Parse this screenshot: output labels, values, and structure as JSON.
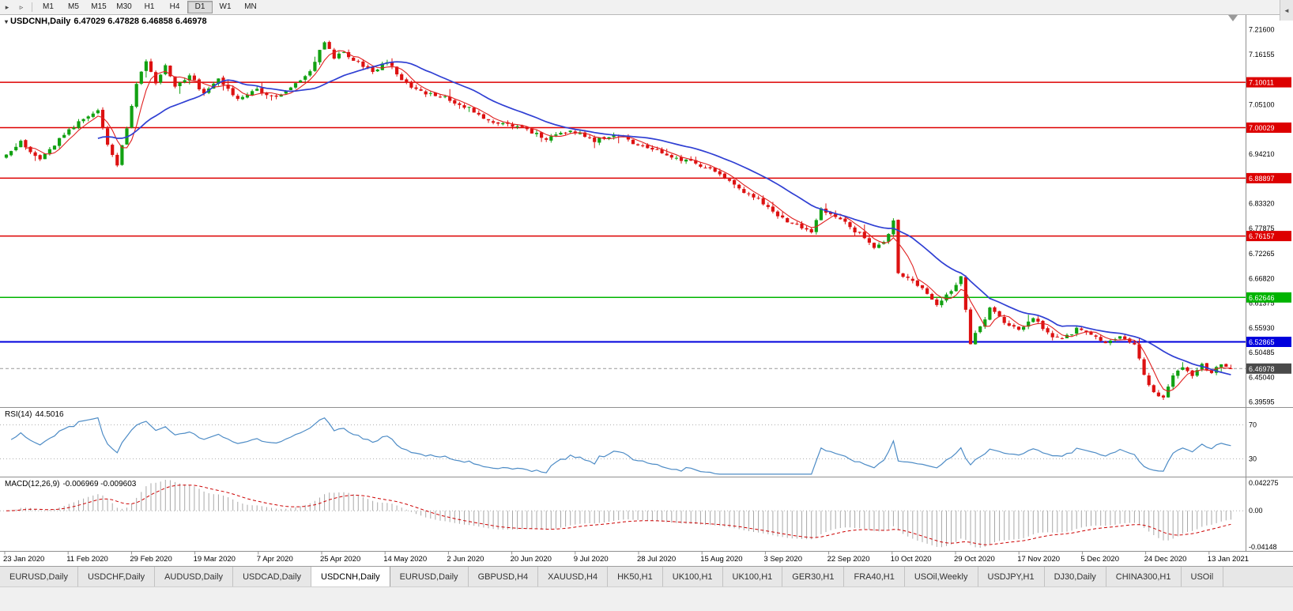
{
  "toolbar": {
    "timeframes": [
      "M1",
      "M5",
      "M15",
      "M30",
      "H1",
      "H4",
      "D1",
      "W1",
      "MN"
    ],
    "active": "D1"
  },
  "chart_data": {
    "type": "candlestick",
    "symbol": "USDCNH",
    "timeframe": "Daily",
    "title": "USDCNH,Daily",
    "ohlc_text": "6.47029 6.47828 6.46858 6.46978",
    "last_candle": {
      "open": 6.47029,
      "high": 6.47828,
      "low": 6.46858,
      "close": 6.46978
    },
    "current_price": "6.46978",
    "y_axis_range": [
      6.385,
      7.25
    ],
    "y_axis_ticks": [
      "7.21600",
      "7.16155",
      "7.05100",
      "6.94210",
      "6.83320",
      "6.77875",
      "6.72265",
      "6.66820",
      "6.61375",
      "6.55930",
      "6.50485",
      "6.45040",
      "6.39595"
    ],
    "levels": [
      {
        "value": "7.10011",
        "color": "#dd0000"
      },
      {
        "value": "7.00029",
        "color": "#dd0000"
      },
      {
        "value": "6.88897",
        "color": "#dd0000"
      },
      {
        "value": "6.76157",
        "color": "#dd0000"
      },
      {
        "value": "6.62646",
        "color": "#00b400"
      },
      {
        "value": "6.52865",
        "color": "#0000dd"
      }
    ],
    "x_labels": [
      "23 Jan 2020",
      "11 Feb 2020",
      "29 Feb 2020",
      "19 Mar 2020",
      "7 Apr 2020",
      "25 Apr 2020",
      "14 May 2020",
      "2 Jun 2020",
      "20 Jun 2020",
      "9 Jul 2020",
      "28 Jul 2020",
      "15 Aug 2020",
      "3 Sep 2020",
      "22 Sep 2020",
      "10 Oct 2020",
      "29 Oct 2020",
      "17 Nov 2020",
      "5 Dec 2020",
      "24 Dec 2020",
      "13 Jan 2021"
    ],
    "candles_n": 255,
    "close_anchors": [
      [
        0,
        6.94
      ],
      [
        3,
        6.968
      ],
      [
        7,
        6.93
      ],
      [
        12,
        6.985
      ],
      [
        16,
        7.02
      ],
      [
        19,
        7.038
      ],
      [
        21,
        6.962
      ],
      [
        23,
        6.92
      ],
      [
        25,
        7.0
      ],
      [
        27,
        7.095
      ],
      [
        29,
        7.15
      ],
      [
        31,
        7.1
      ],
      [
        33,
        7.138
      ],
      [
        35,
        7.09
      ],
      [
        38,
        7.118
      ],
      [
        41,
        7.072
      ],
      [
        44,
        7.108
      ],
      [
        48,
        7.062
      ],
      [
        52,
        7.082
      ],
      [
        56,
        7.068
      ],
      [
        60,
        7.096
      ],
      [
        63,
        7.124
      ],
      [
        66,
        7.192
      ],
      [
        68,
        7.152
      ],
      [
        70,
        7.168
      ],
      [
        73,
        7.142
      ],
      [
        76,
        7.122
      ],
      [
        79,
        7.148
      ],
      [
        82,
        7.102
      ],
      [
        86,
        7.078
      ],
      [
        91,
        7.066
      ],
      [
        96,
        7.042
      ],
      [
        100,
        7.016
      ],
      [
        104,
        7.006
      ],
      [
        108,
        6.996
      ],
      [
        112,
        6.976
      ],
      [
        117,
        6.992
      ],
      [
        122,
        6.972
      ],
      [
        126,
        6.986
      ],
      [
        130,
        6.966
      ],
      [
        134,
        6.952
      ],
      [
        138,
        6.936
      ],
      [
        143,
        6.922
      ],
      [
        147,
        6.902
      ],
      [
        150,
        6.882
      ],
      [
        153,
        6.858
      ],
      [
        156,
        6.842
      ],
      [
        159,
        6.812
      ],
      [
        162,
        6.792
      ],
      [
        165,
        6.782
      ],
      [
        167,
        6.766
      ],
      [
        169,
        6.822
      ],
      [
        172,
        6.806
      ],
      [
        175,
        6.782
      ],
      [
        178,
        6.757
      ],
      [
        180,
        6.732
      ],
      [
        182,
        6.748
      ],
      [
        184,
        6.792
      ],
      [
        185,
        6.682
      ],
      [
        187,
        6.666
      ],
      [
        190,
        6.646
      ],
      [
        193,
        6.612
      ],
      [
        196,
        6.642
      ],
      [
        198,
        6.672
      ],
      [
        200,
        6.527
      ],
      [
        202,
        6.562
      ],
      [
        204,
        6.602
      ],
      [
        207,
        6.572
      ],
      [
        210,
        6.557
      ],
      [
        213,
        6.582
      ],
      [
        216,
        6.547
      ],
      [
        219,
        6.532
      ],
      [
        222,
        6.557
      ],
      [
        225,
        6.542
      ],
      [
        228,
        6.527
      ],
      [
        231,
        6.537
      ],
      [
        234,
        6.522
      ],
      [
        236,
        6.457
      ],
      [
        238,
        6.417
      ],
      [
        240,
        6.407
      ],
      [
        242,
        6.452
      ],
      [
        244,
        6.472
      ],
      [
        246,
        6.457
      ],
      [
        248,
        6.477
      ],
      [
        250,
        6.462
      ],
      [
        252,
        6.478
      ],
      [
        254,
        6.4698
      ]
    ],
    "rsi": {
      "label": "RSI(14)",
      "value": "44.5016",
      "levels": [
        "70",
        "30"
      ]
    },
    "macd": {
      "label": "MACD(12,26,9)",
      "values": "-0.006969 -0.009603",
      "axis_max": "0.042275",
      "axis_zero": "0.00",
      "axis_min": "-0.04148"
    },
    "colors": {
      "up": "#12a112",
      "down": "#dd1111",
      "ma_fast": "#e02020",
      "ma_slow": "#2f3fd3",
      "rsi": "#4e8cc6",
      "macd_hist": "#a8a8a8",
      "macd_signal": "#cc0000",
      "current_badge": "#4a4a4a"
    }
  },
  "tabs": {
    "items": [
      "EURUSD,Daily",
      "USDCHF,Daily",
      "AUDUSD,Daily",
      "USDCAD,Daily",
      "USDCNH,Daily",
      "EURUSD,Daily",
      "GBPUSD,H4",
      "XAUUSD,H4",
      "HK50,H1",
      "UK100,H1",
      "UK100,H1",
      "GER30,H1",
      "FRA40,H1",
      "USOil,Weekly",
      "USDJPY,H1",
      "DJ30,Daily",
      "CHINA300,H1",
      "USOil"
    ],
    "active_index": 4,
    "scroll_icon": "◄"
  }
}
